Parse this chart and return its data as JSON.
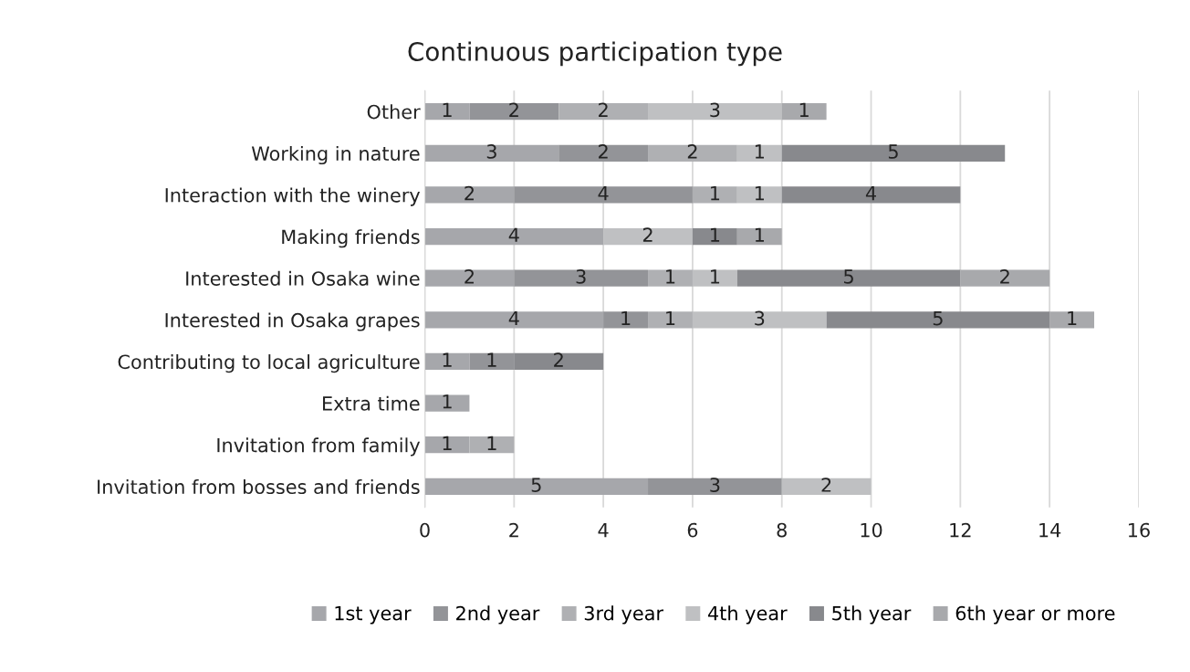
{
  "chart_data": {
    "type": "bar",
    "orientation": "horizontal",
    "stacked": true,
    "title": "Continuous participation type",
    "categories": [
      "Other",
      "Working in nature",
      "Interaction with the winery",
      "Making friends",
      "Interested in Osaka wine",
      "Interested in Osaka grapes",
      "Contributing to local agriculture",
      "Extra time",
      "Invitation from family",
      "Invitation from bosses and friends"
    ],
    "series": [
      {
        "name": "1st year",
        "color": "#a6a7ab",
        "values": [
          1,
          3,
          2,
          4,
          2,
          4,
          1,
          1,
          1,
          5
        ]
      },
      {
        "name": "2nd year",
        "color": "#939498",
        "values": [
          2,
          2,
          4,
          null,
          3,
          1,
          1,
          null,
          null,
          3
        ]
      },
      {
        "name": "3rd year",
        "color": "#afb0b3",
        "values": [
          2,
          2,
          1,
          null,
          1,
          1,
          null,
          null,
          1,
          null
        ]
      },
      {
        "name": "4th year",
        "color": "#bfc0c2",
        "values": [
          3,
          1,
          1,
          2,
          1,
          3,
          null,
          null,
          null,
          2
        ]
      },
      {
        "name": "5th year",
        "color": "#88898d",
        "values": [
          null,
          5,
          4,
          1,
          5,
          5,
          2,
          null,
          null,
          null
        ]
      },
      {
        "name": "6th year or more",
        "color": "#a8a9ac",
        "values": [
          1,
          null,
          null,
          1,
          2,
          1,
          null,
          null,
          null,
          null
        ]
      }
    ],
    "xlim": [
      0,
      16
    ],
    "xticks": [
      0,
      2,
      4,
      6,
      8,
      10,
      12,
      14,
      16
    ],
    "grid": "x",
    "legend": "bottom",
    "data_labels": true
  }
}
